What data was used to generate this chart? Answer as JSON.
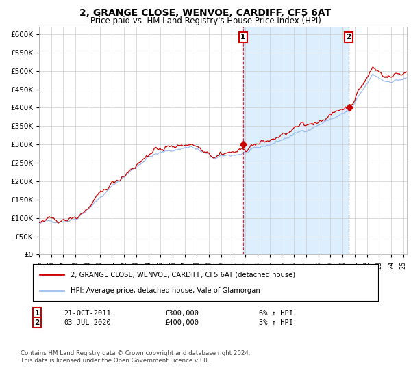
{
  "title": "2, GRANGE CLOSE, WENVOE, CARDIFF, CF5 6AT",
  "subtitle": "Price paid vs. HM Land Registry's House Price Index (HPI)",
  "title_fontsize": 10,
  "subtitle_fontsize": 8.5,
  "red_line_label": "2, GRANGE CLOSE, WENVOE, CARDIFF, CF5 6AT (detached house)",
  "blue_line_label": "HPI: Average price, detached house, Vale of Glamorgan",
  "transaction1_date_str": "21-OCT-2011",
  "transaction1_price": 300000,
  "transaction1_hpi_pct": "6% ↑ HPI",
  "transaction1_year": 2011.8,
  "transaction2_date_str": "03-JUL-2020",
  "transaction2_price": 400000,
  "transaction2_hpi_pct": "3% ↑ HPI",
  "transaction2_year": 2020.5,
  "ylim": [
    0,
    620000
  ],
  "xlim_start": 1995.0,
  "xlim_end": 2025.3,
  "background_color": "#ffffff",
  "plot_bg_color": "#ffffff",
  "shaded_region_color": "#ddeeff",
  "grid_color": "#cccccc",
  "red_color": "#cc0000",
  "blue_color": "#99bbee",
  "footnote": "Contains HM Land Registry data © Crown copyright and database right 2024.\nThis data is licensed under the Open Government Licence v3.0."
}
